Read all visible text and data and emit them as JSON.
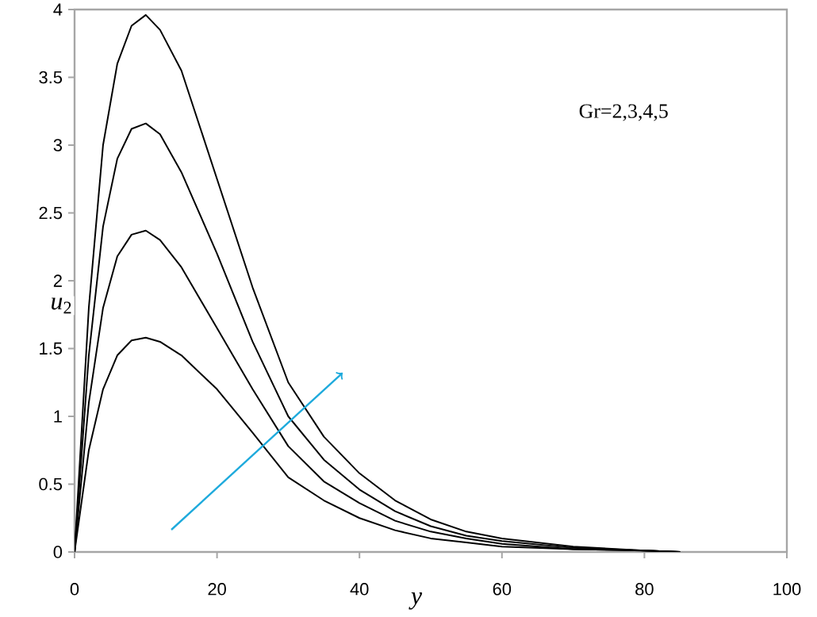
{
  "chart_data": {
    "type": "line",
    "xlabel": "y",
    "ylabel": "*u*$_{2}$",
    "annotations": [
      "Gr=2,3,4,5"
    ],
    "xlim": [
      0,
      100
    ],
    "ylim": [
      0,
      4
    ],
    "xticks": [
      0,
      20,
      40,
      60,
      80,
      100
    ],
    "yticks": [
      0,
      0.5,
      1,
      1.5,
      2,
      2.5,
      3,
      3.5,
      4
    ],
    "grid": false,
    "marker": "none",
    "line_style": "solid",
    "x": [
      0,
      2,
      4,
      6,
      8,
      10,
      12,
      15,
      20,
      25,
      30,
      35,
      40,
      45,
      50,
      55,
      60,
      70,
      80,
      85
    ],
    "series": [
      {
        "color": "#000000",
        "values": [
          0,
          0.75,
          1.2,
          1.45,
          1.56,
          1.58,
          1.55,
          1.45,
          1.2,
          0.88,
          0.55,
          0.38,
          0.25,
          0.16,
          0.1,
          0.07,
          0.04,
          0.02,
          0.01,
          0
        ]
      },
      {
        "color": "#000000",
        "values": [
          0,
          1.1,
          1.8,
          2.18,
          2.34,
          2.37,
          2.3,
          2.1,
          1.65,
          1.2,
          0.78,
          0.52,
          0.36,
          0.23,
          0.15,
          0.1,
          0.06,
          0.02,
          0.01,
          0
        ]
      },
      {
        "color": "#000000",
        "values": [
          0,
          1.45,
          2.4,
          2.9,
          3.12,
          3.16,
          3.08,
          2.8,
          2.2,
          1.55,
          1.0,
          0.68,
          0.46,
          0.3,
          0.19,
          0.12,
          0.08,
          0.03,
          0.01,
          0
        ]
      },
      {
        "color": "#000000",
        "values": [
          0,
          1.8,
          3.0,
          3.6,
          3.88,
          3.96,
          3.85,
          3.55,
          2.75,
          1.95,
          1.25,
          0.85,
          0.58,
          0.38,
          0.24,
          0.15,
          0.1,
          0.04,
          0.01,
          0
        ]
      }
    ]
  }
}
